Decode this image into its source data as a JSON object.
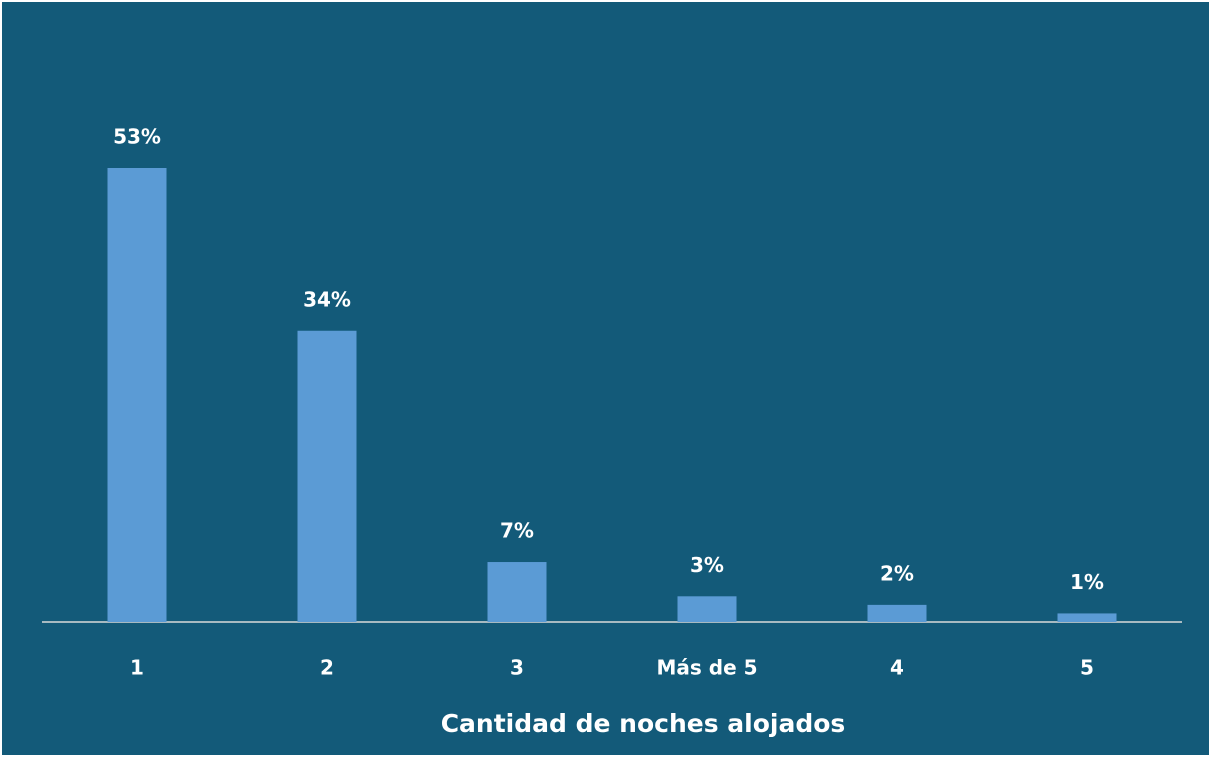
{
  "chart_data": {
    "type": "bar",
    "x_label": "Cantidad de noches alojados",
    "categories": [
      "1",
      "2",
      "3",
      "Más de 5",
      "4",
      "5"
    ],
    "values": [
      53,
      34,
      7,
      3,
      2,
      1
    ],
    "value_labels": [
      "53%",
      "34%",
      "7%",
      "3%",
      "2%",
      "1%"
    ],
    "color": "#5b9bd5"
  }
}
